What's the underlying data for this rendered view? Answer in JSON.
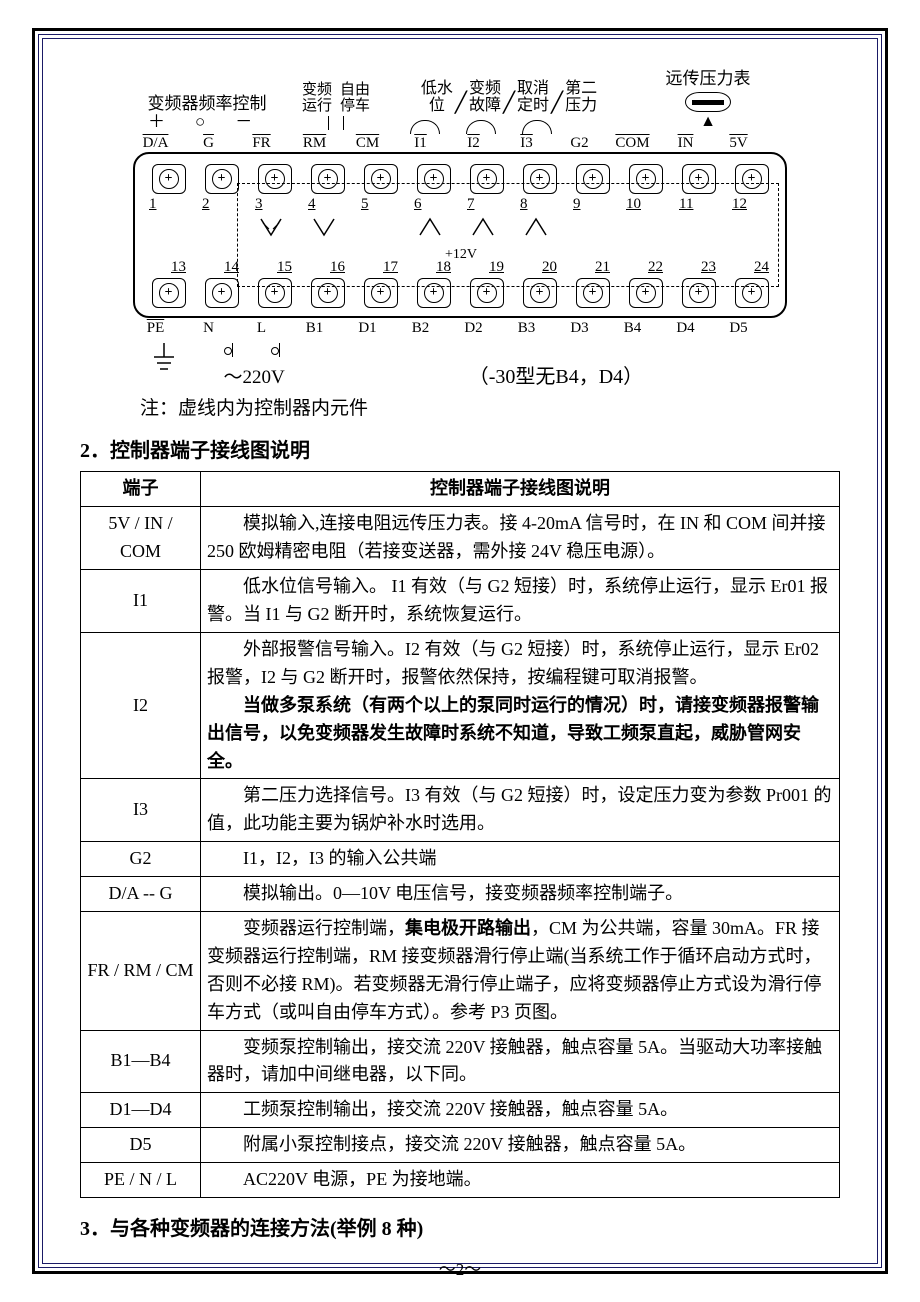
{
  "diagram": {
    "top_groups": [
      {
        "label": "变频器频率控制",
        "sub": "＋　　　○　　　－",
        "span": 2
      },
      {
        "label": "",
        "sub": "",
        "span": 0
      }
    ],
    "mid_labels": {
      "vf_run": "变频\n运行",
      "free_stop": "自由\n停车"
    },
    "switch_labels": [
      "低水\n位",
      "变频\n故障",
      "取消\n定时",
      "第二\n压力"
    ],
    "far_label": "远传压力表",
    "row1": {
      "labels": [
        "D/A",
        "G",
        "FR",
        "RM",
        "CM",
        "I1",
        "I2",
        "I3",
        "G2",
        "COM",
        "IN",
        "5V"
      ],
      "nums": [
        "1",
        "2",
        "3",
        "4",
        "5",
        "6",
        "7",
        "8",
        "9",
        "10",
        "11",
        "12"
      ]
    },
    "row2": {
      "nums": [
        "13",
        "14",
        "15",
        "16",
        "17",
        "18",
        "19",
        "20",
        "21",
        "22",
        "23",
        "24"
      ],
      "labels": [
        "PE",
        "N",
        "L",
        "B1",
        "D1",
        "B2",
        "D2",
        "B3",
        "D3",
        "B4",
        "D4",
        "D5"
      ]
    },
    "i12v": "+12V",
    "v220": "～220V",
    "note30": "（-30型无B4，D4）",
    "note_dashed": "注：虚线内为控制器内元件"
  },
  "section2_title": "2．控制器端子接线图说明",
  "table": {
    "head": [
      "端子",
      "控制器端子接线图说明"
    ],
    "rows": [
      {
        "k": "5V / IN / COM",
        "d": "模拟输入,连接电阻远传压力表。接 4-20mA 信号时，在 IN 和 COM 间并接 250 欧姆精密电阻（若接变送器，需外接 24V 稳压电源）。",
        "indent": true
      },
      {
        "k": "I1",
        "d": "低水位信号输入。 I1 有效（与 G2 短接）时，系统停止运行，显示 Er01 报警。当 I1 与 G2 断开时，系统恢复运行。",
        "indent": true
      },
      {
        "k": "I2",
        "d": "外部报警信号输入。I2 有效（与 G2 短接）时，系统停止运行，显示 Er02 报警，I2 与 G2 断开时，报警依然保持，按编程键可取消报警。<br><span class=\"indent\"></span><span class=\"bold\">当做多泵系统（有两个以上的泵同时运行的情况）时，请接变频器报警输出信号，以免变频器发生故障时系统不知道，导致工频泵直起，威胁管网安全。</span>",
        "indent": true
      },
      {
        "k": "I3",
        "d": "第二压力选择信号。I3 有效（与 G2 短接）时，设定压力变为参数 Pr001 的值，此功能主要为锅炉补水时选用。",
        "indent": true
      },
      {
        "k": "G2",
        "d": "I1，I2，I3 的输入公共端",
        "indent": true
      },
      {
        "k": "D/A -- G",
        "d": "模拟输出。0—10V 电压信号，接变频器频率控制端子。",
        "indent": true
      },
      {
        "k": "FR / RM / CM",
        "d": "变频器运行控制端，<span class=\"bold\">集电极开路输出</span>，CM 为公共端，容量 30mA。FR 接变频器运行控制端，RM 接变频器滑行停止端(当系统工作于循环启动方式时，否则不必接 RM)。若变频器无滑行停止端子，应将变频器停止方式设为滑行停车方式（或叫自由停车方式）。参考 P3 页图。",
        "indent": true
      },
      {
        "k": "B1—B4",
        "d": "变频泵控制输出，接交流 220V 接触器，触点容量 5A。当驱动大功率接触器时，请加中间继电器，以下同。",
        "indent": true
      },
      {
        "k": "D1—D4",
        "d": "工频泵控制输出，接交流 220V 接触器，触点容量 5A。",
        "indent": true
      },
      {
        "k": "D5",
        "d": "附属小泵控制接点，接交流 220V 接触器，触点容量 5A。",
        "indent": true
      },
      {
        "k": "PE / N / L",
        "d": "AC220V 电源，PE 为接地端。",
        "indent": true
      }
    ]
  },
  "section3_title": "3．与各种变频器的连接方法(举例 8 种)",
  "page_num": "～2～",
  "colors": {
    "border": "#000000",
    "accent": "#1a1a66",
    "text": "#000000",
    "bg": "#ffffff"
  }
}
